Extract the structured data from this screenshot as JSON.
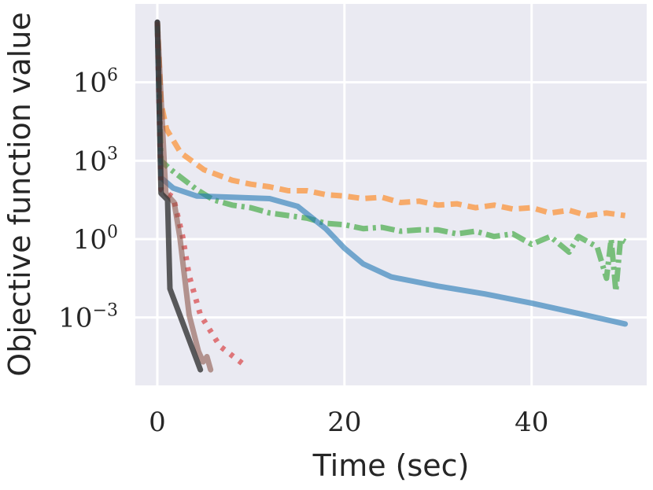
{
  "chart_data": {
    "type": "line",
    "title": "",
    "xlabel": "Time (sec)",
    "ylabel": "Objective function value",
    "yscale": "log",
    "xlim": [
      -2.35,
      52.3
    ],
    "ylim_log10": [
      -5.6,
      9.0
    ],
    "grid": true,
    "legend": "none",
    "xticks": [
      {
        "v": 0,
        "label": "0"
      },
      {
        "v": 20,
        "label": "20"
      },
      {
        "v": 40,
        "label": "40"
      }
    ],
    "yticks": [
      {
        "v": 6,
        "base": "10",
        "exp": "6"
      },
      {
        "v": 3,
        "base": "10",
        "exp": "3"
      },
      {
        "v": 0,
        "base": "10",
        "exp": "0"
      },
      {
        "v": -3,
        "base": "10",
        "exp": "−3"
      }
    ],
    "series": [
      {
        "name": "orange-dashed",
        "color": "#ff7f0e",
        "dash": "14 8",
        "log10_points": [
          [
            0,
            8.3
          ],
          [
            0.4,
            5.2
          ],
          [
            1,
            4.2
          ],
          [
            2.5,
            3.3
          ],
          [
            5,
            2.65
          ],
          [
            8,
            2.25
          ],
          [
            10,
            2.1
          ],
          [
            12,
            2.0
          ],
          [
            14,
            1.85
          ],
          [
            16,
            1.85
          ],
          [
            18,
            1.7
          ],
          [
            20,
            1.65
          ],
          [
            22,
            1.55
          ],
          [
            24,
            1.6
          ],
          [
            26,
            1.4
          ],
          [
            28,
            1.45
          ],
          [
            30,
            1.3
          ],
          [
            32,
            1.35
          ],
          [
            34,
            1.2
          ],
          [
            36,
            1.3
          ],
          [
            38,
            1.15
          ],
          [
            40,
            1.2
          ],
          [
            42,
            1.0
          ],
          [
            44,
            1.1
          ],
          [
            46,
            0.9
          ],
          [
            48,
            1.0
          ],
          [
            50,
            0.9
          ]
        ]
      },
      {
        "name": "green-dashdot",
        "color": "#2ca02c",
        "dash": "18 6 4 6",
        "log10_points": [
          [
            0,
            8.3
          ],
          [
            0.4,
            3.0
          ],
          [
            1.3,
            2.7
          ],
          [
            4.2,
            1.9
          ],
          [
            6,
            1.5
          ],
          [
            8,
            1.3
          ],
          [
            10,
            1.2
          ],
          [
            12,
            1.0
          ],
          [
            14,
            0.9
          ],
          [
            16,
            0.8
          ],
          [
            18,
            0.6
          ],
          [
            20,
            0.55
          ],
          [
            22,
            0.4
          ],
          [
            24,
            0.45
          ],
          [
            26,
            0.3
          ],
          [
            28,
            0.35
          ],
          [
            30,
            0.35
          ],
          [
            32,
            0.2
          ],
          [
            34,
            0.3
          ],
          [
            36,
            0.1
          ],
          [
            38,
            0.2
          ],
          [
            40,
            -0.2
          ],
          [
            42,
            0.1
          ],
          [
            44,
            -0.5
          ],
          [
            45,
            0.1
          ],
          [
            47,
            -0.3
          ],
          [
            48,
            -1.5
          ],
          [
            48.5,
            0
          ],
          [
            49,
            -2.0
          ],
          [
            49.5,
            0
          ],
          [
            50,
            -0.1
          ]
        ]
      },
      {
        "name": "blue-solid",
        "color": "#1f77b4",
        "dash": "",
        "log10_points": [
          [
            0,
            8.3
          ],
          [
            0.4,
            2.35
          ],
          [
            1.7,
            1.95
          ],
          [
            4.2,
            1.65
          ],
          [
            8,
            1.6
          ],
          [
            12,
            1.55
          ],
          [
            15,
            1.25
          ],
          [
            18,
            0.4
          ],
          [
            20,
            -0.35
          ],
          [
            22,
            -0.95
          ],
          [
            25,
            -1.45
          ],
          [
            30,
            -1.8
          ],
          [
            35,
            -2.1
          ],
          [
            40,
            -2.45
          ],
          [
            45,
            -2.85
          ],
          [
            50,
            -3.25
          ]
        ]
      },
      {
        "name": "red-dotted",
        "color": "#d62728",
        "dash": "5 9",
        "log10_points": [
          [
            0,
            8.3
          ],
          [
            0.4,
            1.9
          ],
          [
            1.7,
            1.6
          ],
          [
            2.7,
            0.1
          ],
          [
            3.4,
            -1.4
          ],
          [
            4.6,
            -2.9
          ],
          [
            6.7,
            -4.1
          ],
          [
            9.6,
            -4.9
          ]
        ]
      },
      {
        "name": "brown-solid",
        "color": "#8c564b",
        "dash": "",
        "log10_points": [
          [
            0,
            8.3
          ],
          [
            0.9,
            1.75
          ],
          [
            1.8,
            1.4
          ],
          [
            2.4,
            0.1
          ],
          [
            2.9,
            -1.4
          ],
          [
            3.4,
            -2.9
          ],
          [
            4.4,
            -4.3
          ],
          [
            4.9,
            -4.7
          ],
          [
            5.3,
            -4.5
          ],
          [
            5.7,
            -5.0
          ]
        ]
      },
      {
        "name": "black-solid",
        "color": "#333333",
        "dash": "",
        "log10_points": [
          [
            0,
            8.3
          ],
          [
            0.4,
            1.75
          ],
          [
            1.1,
            1.5
          ],
          [
            1.35,
            -1.9
          ],
          [
            4.6,
            -5.0
          ]
        ]
      }
    ]
  }
}
